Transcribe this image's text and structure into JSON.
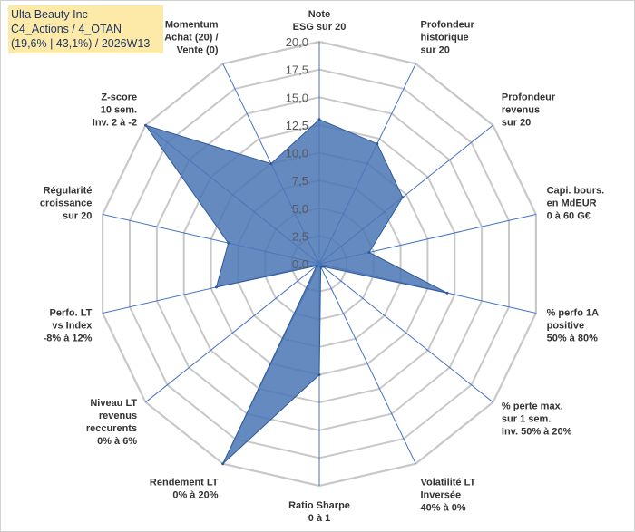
{
  "chart_data": {
    "type": "radar",
    "title_lines": [
      "Ulta Beauty Inc",
      "C4_Actions / 4_OTAN",
      "(19,6% | 43,1%) / 2026W13"
    ],
    "range": [
      0,
      20
    ],
    "ticks": [
      "0,0",
      "2,5",
      "5,0",
      "7,5",
      "10,0",
      "12,5",
      "15,0",
      "17,5",
      "20,0"
    ],
    "tick_values": [
      0,
      2.5,
      5,
      7.5,
      10,
      12.5,
      15,
      17.5,
      20
    ],
    "axes": [
      {
        "label": [
          "Note",
          "ESG sur 20"
        ],
        "value": 13
      },
      {
        "label": [
          "Profondeur",
          "historique",
          "sur 20"
        ],
        "value": 12
      },
      {
        "label": [
          "Profondeur",
          "revenus",
          "sur 20"
        ],
        "value": 9.6
      },
      {
        "label": [
          "Capi. bours.",
          "en MdEUR",
          "0 à 60 G€"
        ],
        "value": 4.6
      },
      {
        "label": [
          "% perfo 1A",
          "positive",
          "50% à 80%"
        ],
        "value": 11.8
      },
      {
        "label": [
          "% perte max.",
          "sur 1 sem.",
          "Inv. 50% à 20%"
        ],
        "value": 0.4
      },
      {
        "label": [
          "Volatilité LT",
          "Inversée",
          "40% à 0%"
        ],
        "value": 0.3
      },
      {
        "label": [
          "Ratio Sharpe",
          "0 à 1"
        ],
        "value": 10
      },
      {
        "label": [
          "Rendement LT",
          "0% à 20%"
        ],
        "value": 20
      },
      {
        "label": [
          "Niveau LT",
          "revenus",
          "reccurents",
          "0% à 6%"
        ],
        "value": 0.3
      },
      {
        "label": [
          "Perfo. LT",
          "vs Index",
          "-8% à 12%"
        ],
        "value": 9.5
      },
      {
        "label": [
          "Régularité",
          "croissance",
          "sur 20"
        ],
        "value": 8.4
      },
      {
        "label": [
          "Z-score",
          "10 sem.",
          "Inv. 2 à -2"
        ],
        "value": 20
      },
      {
        "label": [
          "Momentum",
          "Achat (20) /",
          "Vente (0)"
        ],
        "value": 10
      }
    ],
    "colors": {
      "fill": "#4a76b5",
      "stroke": "#2e5a9a",
      "axis": "#4472c4",
      "grid": "#c8c8c8"
    }
  }
}
